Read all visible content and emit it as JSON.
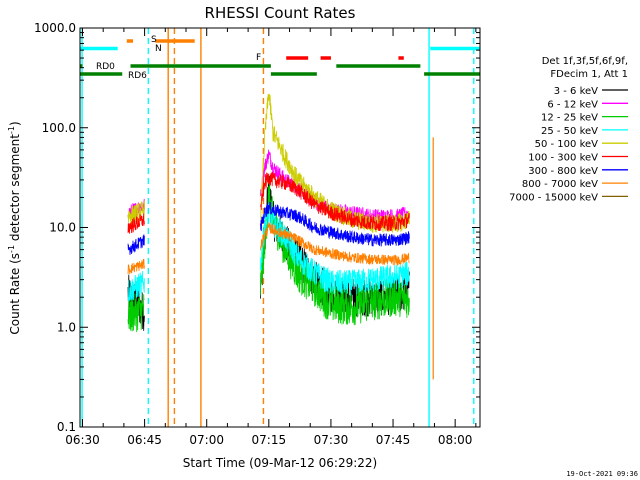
{
  "chart_data": {
    "type": "line",
    "title": "RHESSI Count Rates",
    "xlabel": "Start Time (09-Mar-12 06:29:22)",
    "ylabel": "Count Rate (s⁻¹ detector segment⁻¹)",
    "ylabel_main": "Count Rate (s",
    "ylabel_sup1": "-1",
    "ylabel_mid": " detector segment",
    "ylabel_sup2": "-1",
    "ylabel_end": ")",
    "yscale": "log",
    "ylim": [
      0.1,
      1000
    ],
    "xlim_min": [
      389.4,
      486.0
    ],
    "yticks": [
      {
        "v": 1000,
        "label": "1000.0"
      },
      {
        "v": 100,
        "label": "100.0"
      },
      {
        "v": 10,
        "label": "10.0"
      },
      {
        "v": 1,
        "label": "1.0"
      },
      {
        "v": 0.1,
        "label": "0.1"
      }
    ],
    "xticks": [
      {
        "m": 390,
        "label": "06:30"
      },
      {
        "m": 405,
        "label": "06:45"
      },
      {
        "m": 420,
        "label": "07:00"
      },
      {
        "m": 435,
        "label": "07:15"
      },
      {
        "m": 450,
        "label": "07:30"
      },
      {
        "m": 465,
        "label": "07:45"
      },
      {
        "m": 480,
        "label": "08:00"
      }
    ],
    "legend_header": [
      "Det 1f,3f,5f,6f,9f,",
      "FDecim 1, Att 1"
    ],
    "series": [
      {
        "name": "3 - 6 keV",
        "color": "#000000",
        "p1": [
          [
            401,
            2.2
          ],
          [
            405,
            1.4
          ]
        ],
        "p2": [
          [
            433,
            2.5
          ],
          [
            434,
            8
          ],
          [
            435,
            25
          ],
          [
            436,
            12
          ],
          [
            439,
            7
          ],
          [
            442,
            5
          ],
          [
            446,
            3
          ],
          [
            450,
            2.2
          ],
          [
            455,
            2
          ],
          [
            460,
            2
          ],
          [
            466,
            2.1
          ],
          [
            469,
            2.4
          ]
        ]
      },
      {
        "name": "6 - 12 keV",
        "color": "#ff00ff",
        "p1": [
          [
            401,
            14
          ],
          [
            405,
            17
          ]
        ],
        "p2": [
          [
            433,
            20
          ],
          [
            434,
            40
          ],
          [
            435,
            55
          ],
          [
            436,
            40
          ],
          [
            439,
            30
          ],
          [
            442,
            25
          ],
          [
            446,
            18
          ],
          [
            450,
            15
          ],
          [
            455,
            14
          ],
          [
            460,
            13
          ],
          [
            466,
            13
          ],
          [
            469,
            14
          ]
        ]
      },
      {
        "name": "12 - 25 keV",
        "color": "#00cc00",
        "p1": [
          [
            401,
            1.3
          ],
          [
            405,
            1.5
          ]
        ],
        "p2": [
          [
            433,
            2.5
          ],
          [
            434,
            7
          ],
          [
            435,
            20
          ],
          [
            436,
            12
          ],
          [
            439,
            6
          ],
          [
            442,
            3.5
          ],
          [
            446,
            2.5
          ],
          [
            450,
            1.7
          ],
          [
            455,
            1.6
          ],
          [
            460,
            1.8
          ],
          [
            466,
            2
          ],
          [
            469,
            1.9
          ]
        ]
      },
      {
        "name": "25 - 50 keV",
        "color": "#00ffff",
        "p1": [
          [
            401,
            2.3
          ],
          [
            405,
            2.8
          ]
        ],
        "p2": [
          [
            433,
            4
          ],
          [
            434,
            11
          ],
          [
            435,
            14
          ],
          [
            436,
            11
          ],
          [
            439,
            8
          ],
          [
            442,
            5
          ],
          [
            446,
            3.5
          ],
          [
            450,
            2.8
          ],
          [
            455,
            2.8
          ],
          [
            460,
            3
          ],
          [
            466,
            3.2
          ],
          [
            469,
            3.5
          ]
        ]
      },
      {
        "name": "50 - 100 keV",
        "color": "#cccc00",
        "p1": [
          [
            401,
            13
          ],
          [
            405,
            15
          ]
        ],
        "p2": [
          [
            433,
            12
          ],
          [
            434,
            80
          ],
          [
            435,
            230
          ],
          [
            436,
            90
          ],
          [
            439,
            50
          ],
          [
            442,
            30
          ],
          [
            446,
            20
          ],
          [
            450,
            15
          ],
          [
            455,
            12
          ],
          [
            460,
            11
          ],
          [
            466,
            11
          ],
          [
            469,
            12
          ]
        ]
      },
      {
        "name": "100 - 300 keV",
        "color": "#ff0000",
        "p1": [
          [
            401,
            10
          ],
          [
            405,
            12
          ]
        ],
        "p2": [
          [
            433,
            15
          ],
          [
            434,
            28
          ],
          [
            435,
            32
          ],
          [
            436,
            30
          ],
          [
            439,
            28
          ],
          [
            442,
            24
          ],
          [
            446,
            17
          ],
          [
            450,
            14
          ],
          [
            455,
            12
          ],
          [
            460,
            11
          ],
          [
            466,
            11
          ],
          [
            469,
            12
          ]
        ]
      },
      {
        "name": "300 - 800 keV",
        "color": "#0000ff",
        "p1": [
          [
            401,
            6
          ],
          [
            405,
            7.5
          ]
        ],
        "p2": [
          [
            433,
            10
          ],
          [
            434,
            14
          ],
          [
            435,
            16
          ],
          [
            436,
            15
          ],
          [
            439,
            14
          ],
          [
            442,
            13
          ],
          [
            446,
            10
          ],
          [
            450,
            9
          ],
          [
            455,
            8
          ],
          [
            460,
            7.5
          ],
          [
            466,
            7.5
          ],
          [
            469,
            8
          ]
        ]
      },
      {
        "name": "800 - 7000 keV",
        "color": "#ff8000",
        "p1": [
          [
            401,
            3.8
          ],
          [
            405,
            4.3
          ]
        ],
        "p2": [
          [
            433,
            6.5
          ],
          [
            434,
            8.5
          ],
          [
            435,
            10
          ],
          [
            436,
            9.5
          ],
          [
            439,
            8.5
          ],
          [
            442,
            7.5
          ],
          [
            446,
            6
          ],
          [
            450,
            5.5
          ],
          [
            455,
            5
          ],
          [
            460,
            4.8
          ],
          [
            466,
            4.7
          ],
          [
            469,
            5
          ]
        ]
      },
      {
        "name": "7000 - 15000 keV",
        "color": "#806000",
        "p1": [],
        "p2": []
      }
    ]
  },
  "annotations": {
    "S": "S",
    "N": "N",
    "F": "F",
    "RD0": "RD0",
    "RD6": "RD6",
    "timestamp": "19-Oct-2021 09:36",
    "colors": {
      "cyan": "#00ffff",
      "orange": "#ff8000",
      "red": "#ff0000",
      "green": "#008000"
    }
  },
  "flags": {
    "saa_segments": [
      [
        389.4,
        398.5
      ],
      [
        474,
        486
      ]
    ],
    "night_segments": [
      [
        400.7,
        402.2
      ],
      [
        407.6,
        417.1
      ]
    ],
    "flare_segments": [
      [
        439.2,
        444.5
      ],
      [
        447.5,
        450
      ],
      [
        466.3,
        467.6
      ]
    ],
    "rd_upper_segments": [
      [
        389.4,
        390
      ],
      [
        401.6,
        435.5
      ],
      [
        451.3,
        471.6
      ]
    ],
    "rd_lower_segments": [
      [
        389.4,
        399.6
      ],
      [
        435.5,
        446.6
      ],
      [
        472.5,
        486
      ]
    ],
    "cyan_solid_x": [
      389.9,
      473.7
    ],
    "cyan_dashed_x": [
      405.9,
      484.5
    ],
    "orange_solid_x": [
      410.7,
      418.6
    ],
    "orange_dashed_x": [
      412.2,
      433.7
    ],
    "orange_spike": {
      "x": 474.7,
      "y0": 0.3,
      "y1": 80
    }
  }
}
